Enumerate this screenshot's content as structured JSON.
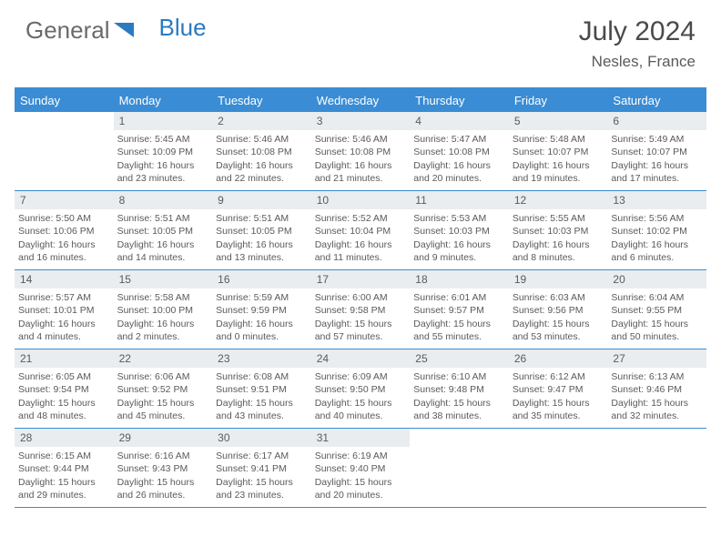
{
  "brand": {
    "part1": "General",
    "part2": "Blue"
  },
  "title": "July 2024",
  "location": "Nesles, France",
  "colors": {
    "accent": "#3a8cd4",
    "header_bg": "#3a8cd4",
    "daynum_bg": "#e9edf0",
    "text": "#5a5a5a",
    "title_text": "#4a4a4a"
  },
  "layout": {
    "columns": 7,
    "rows": 5,
    "first_weekday_offset": 1,
    "days_in_month": 31
  },
  "weekdays": [
    "Sunday",
    "Monday",
    "Tuesday",
    "Wednesday",
    "Thursday",
    "Friday",
    "Saturday"
  ],
  "days": [
    {
      "n": 1,
      "sunrise": "5:45 AM",
      "sunset": "10:09 PM",
      "daylight": "16 hours and 23 minutes."
    },
    {
      "n": 2,
      "sunrise": "5:46 AM",
      "sunset": "10:08 PM",
      "daylight": "16 hours and 22 minutes."
    },
    {
      "n": 3,
      "sunrise": "5:46 AM",
      "sunset": "10:08 PM",
      "daylight": "16 hours and 21 minutes."
    },
    {
      "n": 4,
      "sunrise": "5:47 AM",
      "sunset": "10:08 PM",
      "daylight": "16 hours and 20 minutes."
    },
    {
      "n": 5,
      "sunrise": "5:48 AM",
      "sunset": "10:07 PM",
      "daylight": "16 hours and 19 minutes."
    },
    {
      "n": 6,
      "sunrise": "5:49 AM",
      "sunset": "10:07 PM",
      "daylight": "16 hours and 17 minutes."
    },
    {
      "n": 7,
      "sunrise": "5:50 AM",
      "sunset": "10:06 PM",
      "daylight": "16 hours and 16 minutes."
    },
    {
      "n": 8,
      "sunrise": "5:51 AM",
      "sunset": "10:05 PM",
      "daylight": "16 hours and 14 minutes."
    },
    {
      "n": 9,
      "sunrise": "5:51 AM",
      "sunset": "10:05 PM",
      "daylight": "16 hours and 13 minutes."
    },
    {
      "n": 10,
      "sunrise": "5:52 AM",
      "sunset": "10:04 PM",
      "daylight": "16 hours and 11 minutes."
    },
    {
      "n": 11,
      "sunrise": "5:53 AM",
      "sunset": "10:03 PM",
      "daylight": "16 hours and 9 minutes."
    },
    {
      "n": 12,
      "sunrise": "5:55 AM",
      "sunset": "10:03 PM",
      "daylight": "16 hours and 8 minutes."
    },
    {
      "n": 13,
      "sunrise": "5:56 AM",
      "sunset": "10:02 PM",
      "daylight": "16 hours and 6 minutes."
    },
    {
      "n": 14,
      "sunrise": "5:57 AM",
      "sunset": "10:01 PM",
      "daylight": "16 hours and 4 minutes."
    },
    {
      "n": 15,
      "sunrise": "5:58 AM",
      "sunset": "10:00 PM",
      "daylight": "16 hours and 2 minutes."
    },
    {
      "n": 16,
      "sunrise": "5:59 AM",
      "sunset": "9:59 PM",
      "daylight": "16 hours and 0 minutes."
    },
    {
      "n": 17,
      "sunrise": "6:00 AM",
      "sunset": "9:58 PM",
      "daylight": "15 hours and 57 minutes."
    },
    {
      "n": 18,
      "sunrise": "6:01 AM",
      "sunset": "9:57 PM",
      "daylight": "15 hours and 55 minutes."
    },
    {
      "n": 19,
      "sunrise": "6:03 AM",
      "sunset": "9:56 PM",
      "daylight": "15 hours and 53 minutes."
    },
    {
      "n": 20,
      "sunrise": "6:04 AM",
      "sunset": "9:55 PM",
      "daylight": "15 hours and 50 minutes."
    },
    {
      "n": 21,
      "sunrise": "6:05 AM",
      "sunset": "9:54 PM",
      "daylight": "15 hours and 48 minutes."
    },
    {
      "n": 22,
      "sunrise": "6:06 AM",
      "sunset": "9:52 PM",
      "daylight": "15 hours and 45 minutes."
    },
    {
      "n": 23,
      "sunrise": "6:08 AM",
      "sunset": "9:51 PM",
      "daylight": "15 hours and 43 minutes."
    },
    {
      "n": 24,
      "sunrise": "6:09 AM",
      "sunset": "9:50 PM",
      "daylight": "15 hours and 40 minutes."
    },
    {
      "n": 25,
      "sunrise": "6:10 AM",
      "sunset": "9:48 PM",
      "daylight": "15 hours and 38 minutes."
    },
    {
      "n": 26,
      "sunrise": "6:12 AM",
      "sunset": "9:47 PM",
      "daylight": "15 hours and 35 minutes."
    },
    {
      "n": 27,
      "sunrise": "6:13 AM",
      "sunset": "9:46 PM",
      "daylight": "15 hours and 32 minutes."
    },
    {
      "n": 28,
      "sunrise": "6:15 AM",
      "sunset": "9:44 PM",
      "daylight": "15 hours and 29 minutes."
    },
    {
      "n": 29,
      "sunrise": "6:16 AM",
      "sunset": "9:43 PM",
      "daylight": "15 hours and 26 minutes."
    },
    {
      "n": 30,
      "sunrise": "6:17 AM",
      "sunset": "9:41 PM",
      "daylight": "15 hours and 23 minutes."
    },
    {
      "n": 31,
      "sunrise": "6:19 AM",
      "sunset": "9:40 PM",
      "daylight": "15 hours and 20 minutes."
    }
  ],
  "labels": {
    "sunrise_prefix": "Sunrise: ",
    "sunset_prefix": "Sunset: ",
    "daylight_prefix": "Daylight: "
  }
}
